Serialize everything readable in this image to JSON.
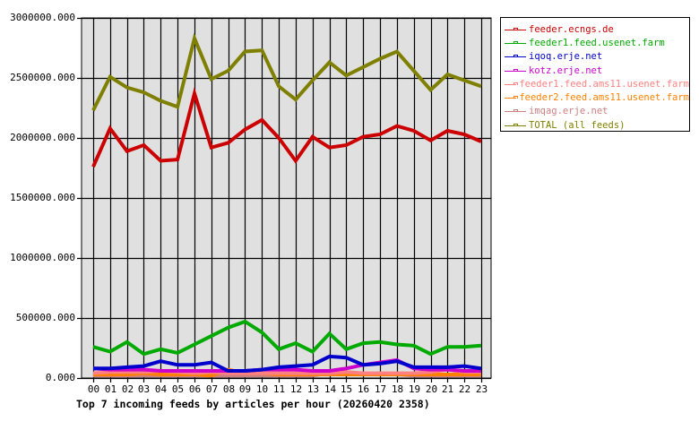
{
  "chart_data": {
    "type": "line",
    "title": "Top 7 incoming feeds by articles per hour (20260420 2358)",
    "xlabel": "",
    "ylabel": "",
    "ylim": [
      0,
      3000000
    ],
    "grid": true,
    "legend_position": "right",
    "y_ticks": [
      "0.000",
      "500000.000",
      "1000000.000",
      "1500000.000",
      "2000000.000",
      "2500000.000",
      "3000000.000"
    ],
    "x": [
      "00",
      "01",
      "02",
      "03",
      "04",
      "05",
      "06",
      "07",
      "08",
      "09",
      "10",
      "11",
      "12",
      "13",
      "14",
      "15",
      "16",
      "17",
      "18",
      "19",
      "20",
      "21",
      "22",
      "23"
    ],
    "series": [
      {
        "name": "feeder.ecngs.de",
        "color": "#cc0000",
        "values": [
          1760000,
          2080000,
          1890000,
          1940000,
          1810000,
          1820000,
          2370000,
          1920000,
          1960000,
          2070000,
          2150000,
          2000000,
          1810000,
          2010000,
          1920000,
          1940000,
          2010000,
          2030000,
          2100000,
          2060000,
          1980000,
          2060000,
          2030000,
          1970000
        ]
      },
      {
        "name": "feeder1.feed.usenet.farm",
        "color": "#00aa00",
        "values": [
          260000,
          220000,
          300000,
          200000,
          240000,
          210000,
          280000,
          350000,
          420000,
          470000,
          380000,
          240000,
          290000,
          220000,
          370000,
          240000,
          290000,
          300000,
          280000,
          270000,
          200000,
          260000,
          260000,
          270000
        ]
      },
      {
        "name": "iqoq.erje.net",
        "color": "#0000cc",
        "values": [
          80000,
          80000,
          90000,
          100000,
          140000,
          110000,
          110000,
          130000,
          60000,
          60000,
          70000,
          90000,
          100000,
          110000,
          180000,
          170000,
          110000,
          120000,
          140000,
          90000,
          90000,
          90000,
          100000,
          80000
        ]
      },
      {
        "name": "kotz.erje.net",
        "color": "#cc00cc",
        "values": [
          80000,
          70000,
          70000,
          70000,
          60000,
          60000,
          60000,
          60000,
          60000,
          60000,
          70000,
          70000,
          70000,
          60000,
          60000,
          80000,
          110000,
          130000,
          150000,
          80000,
          70000,
          70000,
          60000,
          60000
        ]
      },
      {
        "name": "feeder1.feed.ams11.usenet.farm",
        "color": "#ff8080",
        "values": [
          40000,
          50000,
          50000,
          50000,
          60000,
          50000,
          40000,
          50000,
          40000,
          40000,
          40000,
          40000,
          40000,
          40000,
          40000,
          50000,
          40000,
          40000,
          40000,
          40000,
          50000,
          70000,
          50000,
          50000
        ]
      },
      {
        "name": "feeder2.feed.ams11.usenet.farm",
        "color": "#ff8000",
        "values": [
          30000,
          30000,
          30000,
          40000,
          30000,
          30000,
          30000,
          20000,
          70000,
          40000,
          40000,
          30000,
          30000,
          30000,
          30000,
          30000,
          30000,
          30000,
          30000,
          30000,
          30000,
          30000,
          30000,
          30000
        ]
      },
      {
        "name": "imqag.erje.net",
        "color": "#cc8080",
        "values": [
          20000,
          20000,
          20000,
          20000,
          20000,
          20000,
          20000,
          20000,
          20000,
          20000,
          20000,
          20000,
          20000,
          20000,
          40000,
          40000,
          30000,
          40000,
          30000,
          20000,
          20000,
          20000,
          20000,
          20000
        ]
      },
      {
        "name": "TOTAL (all feeds)",
        "color": "#808000",
        "values": [
          2230000,
          2510000,
          2420000,
          2380000,
          2310000,
          2260000,
          2830000,
          2490000,
          2560000,
          2720000,
          2730000,
          2430000,
          2320000,
          2480000,
          2630000,
          2520000,
          2590000,
          2660000,
          2720000,
          2560000,
          2400000,
          2530000,
          2480000,
          2430000
        ]
      }
    ]
  },
  "legend": {
    "items": [
      {
        "label": "feeder.ecngs.de",
        "color": "#cc0000"
      },
      {
        "label": "feeder1.feed.usenet.farm",
        "color": "#00aa00"
      },
      {
        "label": "iqoq.erje.net",
        "color": "#0000cc"
      },
      {
        "label": "kotz.erje.net",
        "color": "#cc00cc"
      },
      {
        "label": "feeder1.feed.ams11.usenet.farm",
        "color": "#ff8080"
      },
      {
        "label": "feeder2.feed.ams11.usenet.farm",
        "color": "#ff8000"
      },
      {
        "label": "imqag.erje.net",
        "color": "#cc8080"
      },
      {
        "label": "TOTAL (all feeds)",
        "color": "#808000"
      }
    ]
  },
  "caption": "Top 7 incoming feeds by articles per hour (20260420 2358)"
}
